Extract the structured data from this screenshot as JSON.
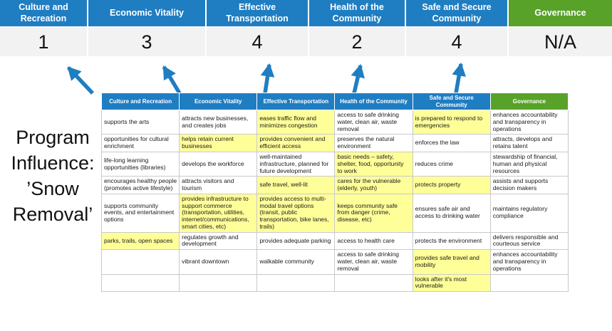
{
  "title": "Program Influence: ’Snow Removal’",
  "colors": {
    "header_blue": "#1f7dc2",
    "header_green": "#58a229",
    "highlight_yellow": "#ffff99",
    "score_background": "#f2f2f2",
    "arrow_blue": "#1f7dc2"
  },
  "categories": [
    {
      "label": "Culture and Recreation",
      "theme": "blue",
      "score": "1"
    },
    {
      "label": "Economic Vitality",
      "theme": "blue",
      "score": "3"
    },
    {
      "label": "Effective Transportation",
      "theme": "blue",
      "score": "4"
    },
    {
      "label": "Health of the Community",
      "theme": "blue",
      "score": "2"
    },
    {
      "label": "Safe and Secure Community",
      "theme": "blue",
      "score": "4"
    },
    {
      "label": "Governance",
      "theme": "green",
      "score": "N/A"
    }
  ],
  "table": {
    "rows": [
      [
        {
          "text": "supports the arts",
          "hl": false
        },
        {
          "text": "attracts new businesses, and creates jobs",
          "hl": false
        },
        {
          "text": "eases traffic flow and minimizes congestion",
          "hl": true
        },
        {
          "text": "access to safe drinking water, clean air, waste removal",
          "hl": false
        },
        {
          "text": "is prepared to respond to emergencies",
          "hl": true
        },
        {
          "text": "enhances accountability and transparency in operations",
          "hl": false
        }
      ],
      [
        {
          "text": "opportunities for cultural enrichment",
          "hl": false
        },
        {
          "text": "helps retain current businesses",
          "hl": true
        },
        {
          "text": "provides convenient and efficient access",
          "hl": true
        },
        {
          "text": "preserves the natural environment",
          "hl": false
        },
        {
          "text": "enforces the law",
          "hl": false
        },
        {
          "text": "attracts, develops and retains talent",
          "hl": false
        }
      ],
      [
        {
          "text": "life-long learning opportunities (libraries)",
          "hl": false
        },
        {
          "text": "develops the workforce",
          "hl": false
        },
        {
          "text": "well-maintained infrastructure, planned for future development",
          "hl": false
        },
        {
          "text": "basic needs – safety, shelter, food, opportunity to work",
          "hl": true
        },
        {
          "text": "reduces crime",
          "hl": false
        },
        {
          "text": "stewardship of financial, human and physical resources",
          "hl": false
        }
      ],
      [
        {
          "text": "encourages healthy people (promotes active lifestyle)",
          "hl": false
        },
        {
          "text": "attracts visitors and tourism",
          "hl": false
        },
        {
          "text": "safe travel, well-lit",
          "hl": true
        },
        {
          "text": "cares for the vulnerable (elderly, youth)",
          "hl": true
        },
        {
          "text": "protects property",
          "hl": true
        },
        {
          "text": "assists and supports decision makers",
          "hl": false
        }
      ],
      [
        {
          "text": "supports community events, and entertainment options",
          "hl": false
        },
        {
          "text": "provides infrastructure to support commerce (transportation, utilities, internet/communications, smart cities, etc)",
          "hl": true
        },
        {
          "text": "provides access to multi-modal travel options (transit, public transportation, bike lanes, trails)",
          "hl": true
        },
        {
          "text": "keeps community safe from danger (crime, disease, etc)",
          "hl": true
        },
        {
          "text": "ensures safe air and access to drinking water",
          "hl": false
        },
        {
          "text": "maintains regulatory compliance",
          "hl": false
        }
      ],
      [
        {
          "text": "parks, trails, open spaces",
          "hl": true
        },
        {
          "text": "regulates growth and development",
          "hl": false
        },
        {
          "text": "provides adequate parking",
          "hl": false
        },
        {
          "text": "access to health care",
          "hl": false
        },
        {
          "text": "protects the environment",
          "hl": false
        },
        {
          "text": "delivers responsible and courteous service",
          "hl": false
        }
      ],
      [
        {
          "text": "",
          "hl": false
        },
        {
          "text": "vibrant downtown",
          "hl": false
        },
        {
          "text": "walkable community",
          "hl": false
        },
        {
          "text": "access to safe drinking water, clean air, waste removal",
          "hl": false
        },
        {
          "text": "provides safe travel and mobility",
          "hl": true
        },
        {
          "text": "enhances accountability and transparency in operations",
          "hl": false
        }
      ],
      [
        {
          "text": "",
          "hl": false
        },
        {
          "text": "",
          "hl": false
        },
        {
          "text": "",
          "hl": false
        },
        {
          "text": "",
          "hl": false
        },
        {
          "text": "looks after it's most vulnerable",
          "hl": true
        },
        {
          "text": "",
          "hl": false
        }
      ]
    ]
  }
}
